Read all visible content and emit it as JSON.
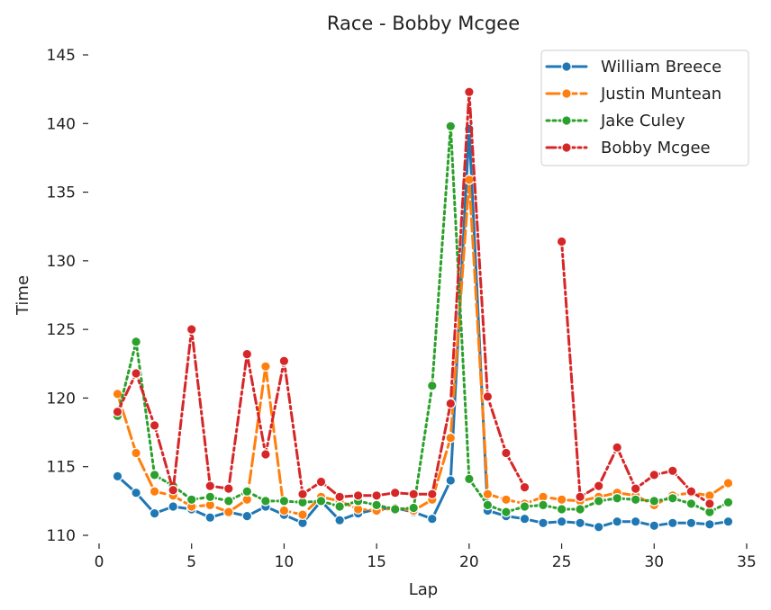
{
  "chart_data": {
    "type": "line",
    "title": "Race - Bobby Mcgee",
    "xlabel": "Lap",
    "ylabel": "Time",
    "xlim": [
      0,
      35
    ],
    "ylim": [
      110,
      145
    ],
    "xticks": [
      "0",
      "5",
      "10",
      "15",
      "20",
      "25",
      "30",
      "35"
    ],
    "yticks": [
      "110",
      "115",
      "120",
      "125",
      "130",
      "135",
      "140",
      "145"
    ],
    "grid": false,
    "legend_position": "top-right",
    "x": [
      1,
      2,
      3,
      4,
      5,
      6,
      7,
      8,
      9,
      10,
      11,
      12,
      13,
      14,
      15,
      16,
      17,
      18,
      19,
      20,
      21,
      22,
      23,
      24,
      25,
      26,
      27,
      28,
      29,
      30,
      31,
      32,
      33,
      34
    ],
    "series": [
      {
        "name": "William Breece",
        "color": "#1f77b4",
        "dash": "solid",
        "values": [
          114.3,
          113.1,
          111.6,
          112.1,
          111.9,
          111.3,
          111.7,
          111.4,
          112.1,
          111.5,
          110.9,
          112.5,
          111.1,
          111.6,
          111.9,
          112.0,
          111.7,
          111.2,
          114.0,
          139.6,
          111.8,
          111.4,
          111.2,
          110.9,
          111.0,
          110.9,
          110.6,
          111.0,
          111.0,
          110.7,
          110.9,
          110.9,
          110.8,
          111.0
        ]
      },
      {
        "name": "Justin Muntean",
        "color": "#ff7f0e",
        "dash": "dashed",
        "values": [
          120.3,
          116.0,
          113.2,
          112.9,
          112.1,
          112.2,
          111.7,
          112.6,
          122.3,
          111.8,
          111.5,
          112.8,
          112.5,
          111.9,
          111.8,
          112.0,
          111.8,
          112.6,
          117.1,
          135.9,
          113.0,
          112.6,
          112.3,
          112.8,
          112.6,
          112.5,
          112.8,
          113.1,
          112.9,
          112.2,
          112.9,
          113.1,
          112.9,
          113.8
        ]
      },
      {
        "name": "Jake Culey",
        "color": "#2ca02c",
        "dash": "dotted",
        "values": [
          118.7,
          124.1,
          114.4,
          113.6,
          112.6,
          112.8,
          112.5,
          113.2,
          112.5,
          112.5,
          112.4,
          112.5,
          112.1,
          112.5,
          112.2,
          111.9,
          112.0,
          120.9,
          139.8,
          114.1,
          112.2,
          111.7,
          112.1,
          112.2,
          111.9,
          111.9,
          112.5,
          112.7,
          112.6,
          112.5,
          112.7,
          112.3,
          111.7,
          112.4
        ]
      },
      {
        "name": "Bobby Mcgee",
        "color": "#d62728",
        "dash": "dashdot",
        "values": [
          119.0,
          121.8,
          118.0,
          113.3,
          125.0,
          113.6,
          113.4,
          123.2,
          115.9,
          122.7,
          113.0,
          113.9,
          112.8,
          112.9,
          112.9,
          113.1,
          113.0,
          113.0,
          119.6,
          142.3,
          120.1,
          116.0,
          113.5,
          null,
          131.4,
          112.8,
          113.6,
          116.4,
          113.4,
          114.4,
          114.7,
          113.2,
          112.3,
          null
        ]
      }
    ]
  }
}
